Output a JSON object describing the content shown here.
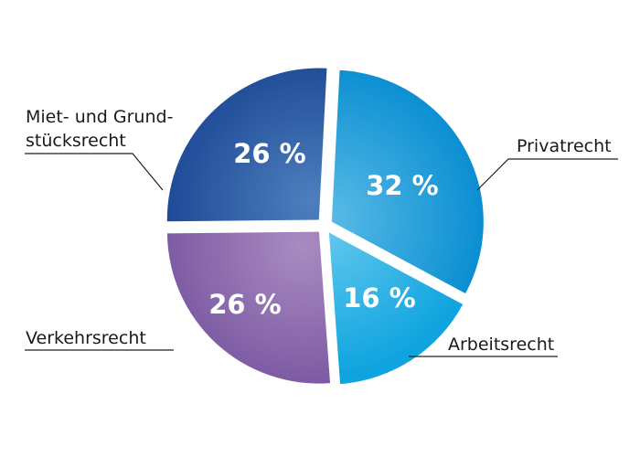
{
  "chart_data": {
    "type": "pie",
    "slices": [
      {
        "label_lines": [
          "Privatrecht"
        ],
        "value": 32,
        "value_label": "32 %",
        "color": "#1a9bd8"
      },
      {
        "label_lines": [
          "Arbeitsrecht"
        ],
        "value": 16,
        "value_label": "16 %",
        "color": "#3cb6e8"
      },
      {
        "label_lines": [
          "Verkehrsrecht"
        ],
        "value": 26,
        "value_label": "26 %",
        "color": "#8a62aa"
      },
      {
        "label_lines": [
          "Miet- und Grund-",
          "stücksrecht"
        ],
        "value": 26,
        "value_label": "26 %",
        "color": "#1f5ea8"
      }
    ]
  }
}
